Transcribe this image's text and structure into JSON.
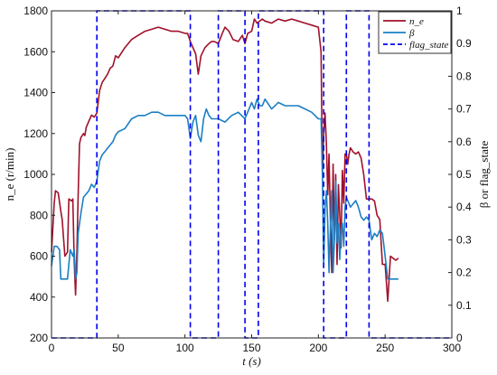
{
  "chart_data": {
    "type": "line",
    "title": "",
    "xlabel": "t (s)",
    "ylabel_left": "n_e (r/min)",
    "ylabel_right": "β or flag_state",
    "xlim": [
      0,
      300
    ],
    "ylim_left": [
      200,
      1800
    ],
    "ylim_right": [
      0,
      1
    ],
    "x_ticks": [
      "0",
      "50",
      "100",
      "150",
      "200",
      "250",
      "300"
    ],
    "y_ticks_left": [
      "200",
      "400",
      "600",
      "800",
      "1000",
      "1200",
      "1400",
      "1600",
      "1800"
    ],
    "y_ticks_right": [
      "0",
      "0.1",
      "0.2",
      "0.3",
      "0.4",
      "0.5",
      "0.6",
      "0.7",
      "0.8",
      "0.9",
      "1"
    ],
    "grid": false,
    "legend": {
      "position": "top-right",
      "entries": [
        {
          "name": "n_e",
          "color": "#a0112b",
          "dash": "solid"
        },
        {
          "name": "β",
          "color": "#1b7fc4",
          "dash": "solid"
        },
        {
          "name": "flag_state",
          "color": "#0000ee",
          "dash": "dashed"
        }
      ]
    },
    "series": [
      {
        "name": "n_e",
        "axis": "left",
        "color": "#a0112b",
        "x": [
          0,
          2,
          3,
          5,
          7,
          8,
          10,
          12,
          13,
          15,
          16,
          17,
          18,
          19,
          20,
          21,
          22,
          24,
          25,
          26,
          28,
          30,
          32,
          34,
          36,
          38,
          40,
          42,
          44,
          46,
          48,
          50,
          55,
          60,
          65,
          70,
          75,
          80,
          85,
          90,
          95,
          100,
          102,
          104,
          106,
          108,
          110,
          112,
          115,
          118,
          120,
          122,
          125,
          128,
          130,
          133,
          136,
          140,
          143,
          145,
          147,
          150,
          152,
          154,
          156,
          158,
          160,
          165,
          170,
          175,
          180,
          185,
          190,
          195,
          200,
          202,
          203,
          204,
          205,
          206,
          207,
          208,
          209,
          210,
          211,
          212,
          213,
          214,
          215,
          216,
          217,
          218,
          219,
          220,
          221,
          222,
          223,
          224,
          225,
          226,
          228,
          230,
          232,
          234,
          236,
          238,
          240,
          242,
          244,
          246,
          248,
          250,
          252,
          254,
          256,
          258,
          260
        ],
        "values": [
          620,
          860,
          920,
          910,
          820,
          780,
          600,
          620,
          880,
          870,
          880,
          580,
          410,
          620,
          900,
          1150,
          1180,
          1200,
          1190,
          1230,
          1260,
          1290,
          1280,
          1300,
          1410,
          1450,
          1470,
          1490,
          1520,
          1530,
          1580,
          1570,
          1620,
          1660,
          1680,
          1700,
          1710,
          1720,
          1710,
          1700,
          1700,
          1690,
          1690,
          1650,
          1620,
          1590,
          1490,
          1580,
          1620,
          1640,
          1650,
          1650,
          1640,
          1690,
          1720,
          1700,
          1660,
          1650,
          1680,
          1640,
          1690,
          1700,
          1760,
          1740,
          1750,
          1760,
          1750,
          1740,
          1760,
          1750,
          1760,
          1750,
          1740,
          1730,
          1720,
          1600,
          1000,
          1200,
          1300,
          1150,
          900,
          1100,
          780,
          520,
          1050,
          680,
          1000,
          560,
          950,
          800,
          640,
          1020,
          860,
          1100,
          1100,
          1050,
          1100,
          1130,
          1120,
          1110,
          1100,
          1110,
          1080,
          1000,
          880,
          880,
          880,
          870,
          800,
          780,
          560,
          560,
          380,
          600,
          590,
          580,
          590
        ]
      },
      {
        "name": "β",
        "axis": "right",
        "color": "#1b7fc4",
        "x": [
          0,
          2,
          4,
          6,
          7,
          8,
          10,
          12,
          14,
          16,
          17,
          18,
          19,
          20,
          22,
          24,
          26,
          28,
          30,
          32,
          34,
          36,
          38,
          40,
          42,
          44,
          46,
          48,
          50,
          55,
          60,
          65,
          70,
          75,
          80,
          85,
          90,
          95,
          100,
          102,
          104,
          106,
          108,
          110,
          112,
          114,
          116,
          118,
          120,
          125,
          130,
          135,
          140,
          145,
          150,
          152,
          154,
          156,
          158,
          160,
          165,
          170,
          175,
          180,
          185,
          190,
          195,
          200,
          202,
          203,
          204,
          205,
          206,
          207,
          208,
          209,
          210,
          211,
          212,
          213,
          214,
          215,
          216,
          217,
          218,
          219,
          220,
          221,
          222,
          224,
          226,
          228,
          230,
          232,
          234,
          236,
          238,
          240,
          242,
          244,
          246,
          248,
          250,
          252,
          254,
          256,
          258,
          260
        ],
        "values": [
          0.22,
          0.28,
          0.28,
          0.27,
          0.18,
          0.18,
          0.18,
          0.18,
          0.27,
          0.25,
          0.27,
          0.18,
          0.2,
          0.32,
          0.38,
          0.43,
          0.44,
          0.45,
          0.47,
          0.46,
          0.48,
          0.54,
          0.56,
          0.57,
          0.58,
          0.59,
          0.6,
          0.62,
          0.63,
          0.64,
          0.67,
          0.68,
          0.68,
          0.69,
          0.69,
          0.68,
          0.68,
          0.68,
          0.68,
          0.67,
          0.61,
          0.66,
          0.68,
          0.62,
          0.6,
          0.67,
          0.7,
          0.68,
          0.67,
          0.67,
          0.66,
          0.68,
          0.69,
          0.67,
          0.72,
          0.7,
          0.73,
          0.71,
          0.71,
          0.73,
          0.7,
          0.72,
          0.71,
          0.71,
          0.71,
          0.7,
          0.69,
          0.67,
          0.67,
          0.5,
          0.22,
          0.4,
          0.45,
          0.35,
          0.2,
          0.34,
          0.45,
          0.2,
          0.3,
          0.48,
          0.29,
          0.35,
          0.24,
          0.33,
          0.35,
          0.28,
          0.4,
          0.43,
          0.42,
          0.4,
          0.41,
          0.42,
          0.4,
          0.37,
          0.36,
          0.37,
          0.36,
          0.3,
          0.32,
          0.31,
          0.33,
          0.32,
          0.25,
          0.18,
          0.18,
          0.18,
          0.18,
          0.18
        ]
      },
      {
        "name": "flag_state",
        "axis": "right",
        "color": "#0000ee",
        "type": "step",
        "transitions": [
          34,
          104,
          125,
          145,
          155,
          204,
          221,
          238
        ],
        "levels": [
          0,
          1,
          0,
          1,
          0,
          1,
          0,
          1,
          0
        ]
      }
    ]
  }
}
